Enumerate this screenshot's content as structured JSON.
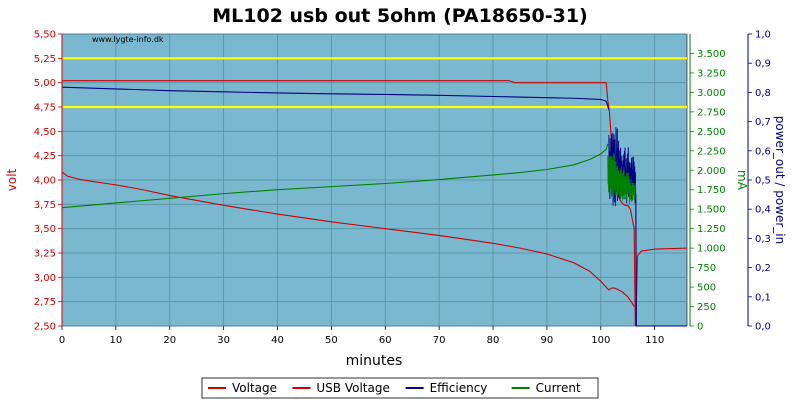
{
  "chart_data": {
    "type": "line",
    "title": "ML102 usb out 5ohm (PA18650-31)",
    "watermark": "www.lygte-info.dk",
    "xlabel": "minutes",
    "xlim": [
      0,
      116
    ],
    "xticks": [
      "0",
      "10",
      "20",
      "30",
      "40",
      "50",
      "60",
      "70",
      "80",
      "90",
      "100",
      "110"
    ],
    "axes": {
      "left": {
        "label": "volt",
        "color": "#cc0000",
        "lim": [
          2.5,
          5.5
        ],
        "ticks": [
          "2,50",
          "2,75",
          "3,00",
          "3,25",
          "3,50",
          "3,75",
          "4,00",
          "4,25",
          "4,50",
          "4,75",
          "5,00",
          "5,25",
          "5,50"
        ]
      },
      "mid": {
        "label": "mA",
        "color": "#008000",
        "lim": [
          0,
          3750
        ],
        "ticks": [
          "0",
          "250",
          "500",
          "750",
          "1.000",
          "1.250",
          "1.500",
          "1.750",
          "2.000",
          "2.250",
          "2.500",
          "2.750",
          "3.000",
          "3.250",
          "3.500"
        ]
      },
      "right": {
        "label": "power_out / power_in",
        "color": "#000080",
        "lim": [
          0,
          1.0
        ],
        "ticks": [
          "0,0",
          "0,1",
          "0,2",
          "0,3",
          "0,4",
          "0,5",
          "0,6",
          "0,7",
          "0,8",
          "0,9",
          "1,0"
        ]
      }
    },
    "reference_lines": {
      "axis": "left",
      "values": [
        4.75,
        5.25
      ],
      "color": "#ffff00"
    },
    "grid": true,
    "legend_placement": "bottom",
    "plot_background": "#7ab8d0",
    "series": [
      {
        "name": "Voltage",
        "axis": "left",
        "color": "#cc0000",
        "x": [
          0,
          1,
          3,
          5,
          10,
          15,
          20,
          25,
          30,
          40,
          50,
          60,
          70,
          80,
          85,
          90,
          95,
          98,
          100,
          101,
          101.5,
          102,
          102.5,
          103,
          104,
          105,
          105.5,
          106,
          106.2
        ],
        "y": [
          4.08,
          4.04,
          4.01,
          3.99,
          3.95,
          3.9,
          3.84,
          3.79,
          3.74,
          3.65,
          3.57,
          3.5,
          3.43,
          3.35,
          3.3,
          3.24,
          3.15,
          3.06,
          2.96,
          2.9,
          2.87,
          2.89,
          2.89,
          2.88,
          2.85,
          2.8,
          2.76,
          2.72,
          2.7
        ]
      },
      {
        "name": "Voltage",
        "axis": "left",
        "color": "#cc0000",
        "x": [
          106.5,
          106.8,
          107.5,
          110,
          116
        ],
        "y": [
          2.5,
          3.22,
          3.27,
          3.29,
          3.3
        ]
      },
      {
        "name": "USB Voltage",
        "axis": "left",
        "color": "#cc0000",
        "x": [
          0,
          80,
          83,
          84,
          100,
          101,
          101.3,
          101.6,
          102,
          102.5,
          103,
          103.5,
          104,
          104.5,
          105,
          105.5,
          106,
          106.2,
          106.4
        ],
        "y": [
          5.02,
          5.02,
          5.02,
          5.0,
          5.0,
          5.0,
          4.82,
          4.7,
          4.4,
          4.15,
          3.9,
          3.8,
          3.76,
          3.74,
          3.74,
          3.7,
          3.55,
          3.5,
          2.5
        ]
      },
      {
        "name": "Efficiency",
        "axis": "right",
        "color": "#000080",
        "x": [
          0,
          5,
          10,
          20,
          30,
          40,
          50,
          60,
          70,
          80,
          90,
          95,
          100,
          101,
          101.5
        ],
        "y": [
          0.818,
          0.815,
          0.812,
          0.806,
          0.802,
          0.798,
          0.795,
          0.793,
          0.79,
          0.786,
          0.782,
          0.78,
          0.776,
          0.77,
          0.74
        ]
      },
      {
        "name": "Efficiency",
        "axis": "right",
        "color": "#000080",
        "noisy": true,
        "x": [
          101.5,
          106.5
        ],
        "y": [
          0.73,
          0.47
        ],
        "low": [
          0.4,
          0.42
        ],
        "high": [
          0.73,
          0.57
        ],
        "step": 0.06
      },
      {
        "name": "Efficiency",
        "axis": "right",
        "color": "#000080",
        "x": [
          106.5,
          106.6,
          116
        ],
        "y": [
          0.45,
          0.0,
          0.0
        ]
      },
      {
        "name": "Current",
        "axis": "mid",
        "color": "#008000",
        "x": [
          0,
          10,
          20,
          30,
          40,
          50,
          60,
          70,
          80,
          85,
          90,
          95,
          98,
          100,
          101,
          101.3
        ],
        "y": [
          1520,
          1580,
          1640,
          1700,
          1750,
          1790,
          1830,
          1880,
          1940,
          1970,
          2010,
          2070,
          2140,
          2210,
          2270,
          2340
        ]
      },
      {
        "name": "Current",
        "axis": "mid",
        "color": "#008000",
        "noisy": true,
        "x": [
          101.3,
          106.4
        ],
        "y": [
          2200,
          1730
        ],
        "low": [
          1650,
          1550
        ],
        "high": [
          2340,
          1850
        ],
        "step": 0.05
      }
    ],
    "legend": [
      {
        "name": "Voltage",
        "color": "#cc0000"
      },
      {
        "name": "USB Voltage",
        "color": "#cc0000"
      },
      {
        "name": "Efficiency",
        "color": "#000080"
      },
      {
        "name": "Current",
        "color": "#008000"
      }
    ]
  }
}
